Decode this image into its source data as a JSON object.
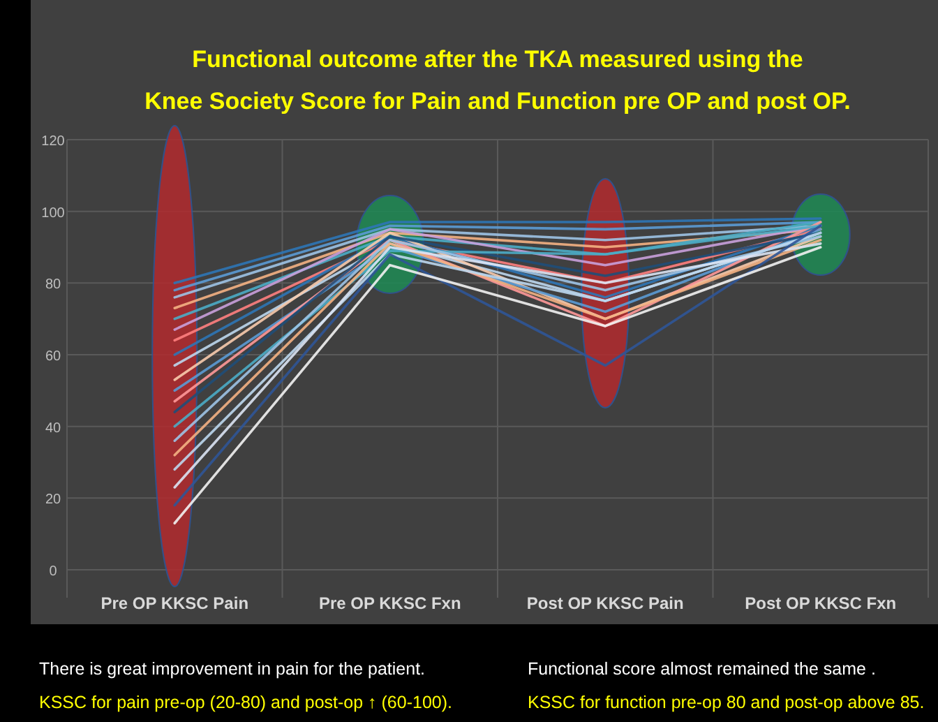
{
  "chart_data": {
    "type": "line",
    "title": "Functional outcome after the TKA measured using the",
    "subtitle": "Knee Society Score for Pain and Function pre OP and post OP.",
    "categories": [
      "Pre OP KKSC Pain",
      "Pre OP KKSC Fxn",
      "Post OP KKSC Pain",
      "Post OP KKSC Fxn"
    ],
    "ylim": [
      0,
      120
    ],
    "yticks": [
      0,
      20,
      40,
      60,
      80,
      100,
      120
    ],
    "grid": true,
    "marker": "none",
    "line_style": "solid",
    "series": [
      {
        "color": "#2e75b6",
        "values": [
          80,
          97,
          97,
          98
        ]
      },
      {
        "color": "#5b9bd5",
        "values": [
          78,
          96,
          95,
          97
        ]
      },
      {
        "color": "#9dc3e6",
        "values": [
          76,
          95,
          92,
          96
        ]
      },
      {
        "color": "#f4b183",
        "values": [
          73,
          94,
          90,
          95
        ]
      },
      {
        "color": "#4bacc6",
        "values": [
          70,
          93,
          88,
          97
        ]
      },
      {
        "color": "#c9a0dc",
        "values": [
          67,
          95,
          85,
          96
        ]
      },
      {
        "color": "#ff8080",
        "values": [
          64,
          92,
          80,
          95
        ]
      },
      {
        "color": "#2e75b6",
        "values": [
          60,
          93,
          76,
          96
        ]
      },
      {
        "color": "#bdd7ee",
        "values": [
          57,
          91,
          75,
          94
        ]
      },
      {
        "color": "#f8cbad",
        "values": [
          53,
          94,
          70,
          93
        ]
      },
      {
        "color": "#5b9bd5",
        "values": [
          50,
          90,
          72,
          95
        ]
      },
      {
        "color": "#ff9999",
        "values": [
          47,
          92,
          68,
          97
        ]
      },
      {
        "color": "#1f4e79",
        "values": [
          44,
          93,
          82,
          94
        ]
      },
      {
        "color": "#4bacc6",
        "values": [
          40,
          89,
          88,
          96
        ]
      },
      {
        "color": "#9dc3e6",
        "values": [
          36,
          92,
          78,
          93
        ]
      },
      {
        "color": "#f4b183",
        "values": [
          32,
          91,
          70,
          92
        ]
      },
      {
        "color": "#bdd7ee",
        "values": [
          28,
          88,
          75,
          94
        ]
      },
      {
        "color": "#dae3f3",
        "values": [
          23,
          90,
          80,
          91
        ]
      },
      {
        "color": "#2f5597",
        "values": [
          18,
          88,
          57,
          96
        ]
      },
      {
        "color": "#f2f2f2",
        "values": [
          13,
          85,
          68,
          90
        ]
      }
    ],
    "annotations": [
      "There is great improvement in pain for the patient.",
      "KSSC for pain pre-op (20-80)  and  post-op ↑ (60-100).",
      "Functional score almost remained the same .",
      "KSSC for function pre-op 80 and post-op above 85."
    ]
  }
}
